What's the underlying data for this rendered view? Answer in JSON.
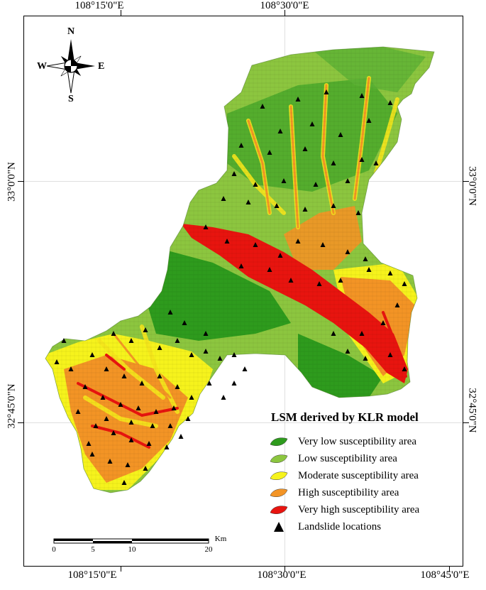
{
  "coordinates": {
    "top": [
      "108°15'0\"E",
      "108°30'0\"E"
    ],
    "bottom": [
      "108°15'0\"E",
      "108°30'0\"E",
      "108°45'0\"E"
    ],
    "left": [
      "33°0'0\"N",
      "32°45'0\"N"
    ],
    "right": [
      "33°0'0\"N",
      "32°45'0\"N"
    ]
  },
  "compass": {
    "n": "N",
    "s": "S",
    "e": "E",
    "w": "W"
  },
  "legend": {
    "title": "LSM derived by KLR model",
    "items": [
      {
        "label": "Very low susceptibility area",
        "color": "#2e9b1d"
      },
      {
        "label": "Low susceptibility area",
        "color": "#8cc63f"
      },
      {
        "label": "Moderate susceptibility area",
        "color": "#f6f31c"
      },
      {
        "label": "High susceptibility area",
        "color": "#f39425"
      },
      {
        "label": "Very high susceptibility area",
        "color": "#e8140f"
      },
      {
        "label": "Landslide locations",
        "color": "#000000"
      }
    ]
  },
  "scale": {
    "labels": [
      "0",
      "5",
      "10",
      "20"
    ],
    "unit": "Km"
  },
  "colors": {
    "very_low": "#2e9b1d",
    "low": "#8cc63f",
    "moderate": "#f6f31c",
    "high": "#f39425",
    "very_high": "#e8140f"
  }
}
